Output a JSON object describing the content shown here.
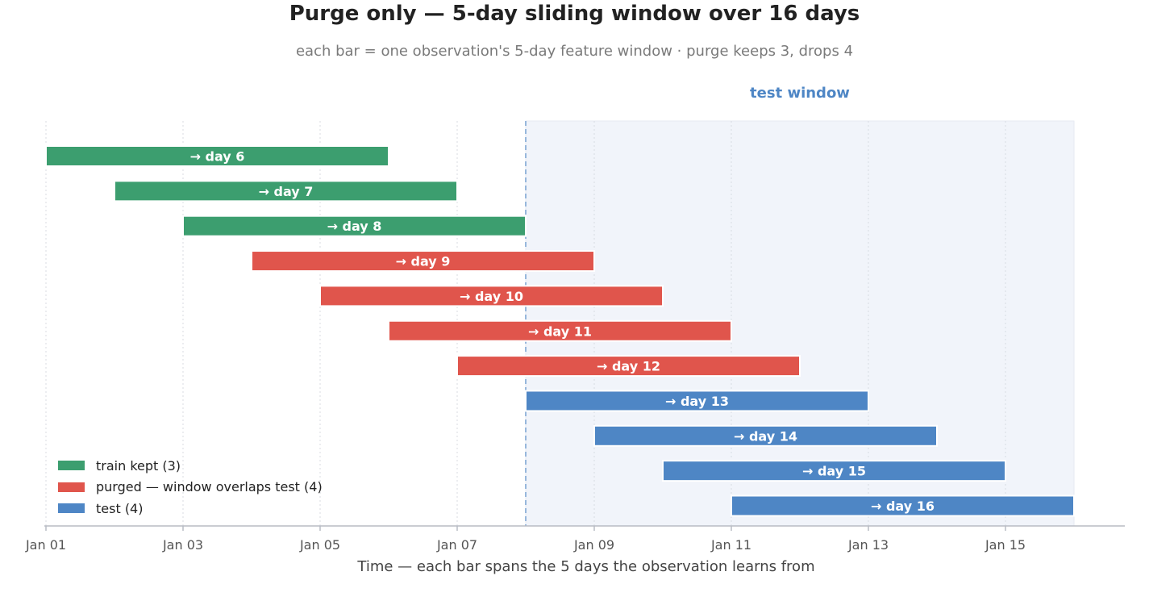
{
  "title": "Purge only — 5-day sliding window over 16 days",
  "subtitle": "each bar = one observation's 5-day feature window   ·   purge keeps 3, drops 4",
  "chart_data": {
    "type": "bar",
    "orientation": "horizontal-range",
    "title": "Purge only — 5-day sliding window over 16 days",
    "subtitle": "each bar = one observation's 5-day feature window   ·   purge keeps 3, drops 4",
    "xlabel": "Time  —  each bar spans the 5 days the observation learns from",
    "ylabel": "",
    "xlim": [
      "Jan 01",
      "Jan 16 + 0.75 day"
    ],
    "x_ticks": [
      "Jan 01",
      "Jan 03",
      "Jan 05",
      "Jan 07",
      "Jan 09",
      "Jan 11",
      "Jan 13",
      "Jan 15"
    ],
    "grid": "vertical dotted",
    "test_window": {
      "label": "test window",
      "start": "Jan 08",
      "end": "Jan 16"
    },
    "colors": {
      "train": "#3c9e6f",
      "purged": "#e0554c",
      "test": "#4e86c5",
      "test_region": "#f1f4fa"
    },
    "bars": [
      {
        "label": "→ day 6",
        "start": "Jan 01",
        "end": "Jan 06",
        "group": "train"
      },
      {
        "label": "→ day 7",
        "start": "Jan 02",
        "end": "Jan 07",
        "group": "train"
      },
      {
        "label": "→ day 8",
        "start": "Jan 03",
        "end": "Jan 08",
        "group": "train"
      },
      {
        "label": "→ day 9",
        "start": "Jan 04",
        "end": "Jan 09",
        "group": "purged"
      },
      {
        "label": "→ day 10",
        "start": "Jan 05",
        "end": "Jan 10",
        "group": "purged"
      },
      {
        "label": "→ day 11",
        "start": "Jan 06",
        "end": "Jan 11",
        "group": "purged"
      },
      {
        "label": "→ day 12",
        "start": "Jan 07",
        "end": "Jan 12",
        "group": "purged"
      },
      {
        "label": "→ day 13",
        "start": "Jan 08",
        "end": "Jan 13",
        "group": "test"
      },
      {
        "label": "→ day 14",
        "start": "Jan 09",
        "end": "Jan 14",
        "group": "test"
      },
      {
        "label": "→ day 15",
        "start": "Jan 10",
        "end": "Jan 15",
        "group": "test"
      },
      {
        "label": "→ day 16",
        "start": "Jan 11",
        "end": "Jan 16",
        "group": "test"
      }
    ],
    "legend": {
      "placement": "bottom-left",
      "items": [
        {
          "label": "train kept  (3)",
          "group": "train"
        },
        {
          "label": "purged — window overlaps test  (4)",
          "group": "purged"
        },
        {
          "label": "test  (4)",
          "group": "test"
        }
      ]
    }
  }
}
